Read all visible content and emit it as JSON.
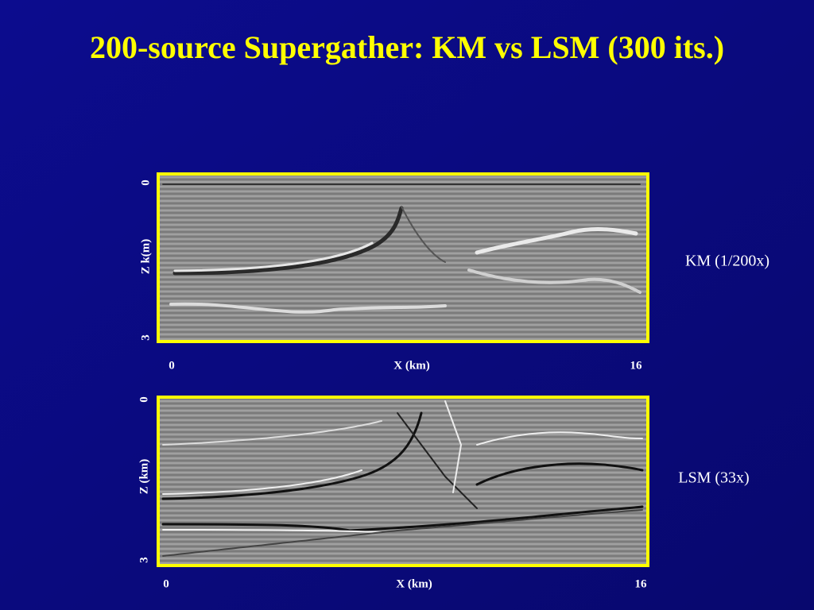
{
  "title": "200-source Supergather:  KM vs LSM (300 its.)",
  "panels": [
    {
      "label": "KM (1/200x)",
      "z_axis": {
        "label": "Z k(m)",
        "top": 0,
        "bottom": 3
      },
      "x_axis": {
        "label": "X (km)",
        "left": 0,
        "right": 16
      }
    },
    {
      "label": "LSM (33x)",
      "z_axis": {
        "label": "Z (km)",
        "top": 0,
        "bottom": 3
      },
      "x_axis": {
        "label": "X (km)",
        "left": 0,
        "right": 16
      }
    }
  ]
}
